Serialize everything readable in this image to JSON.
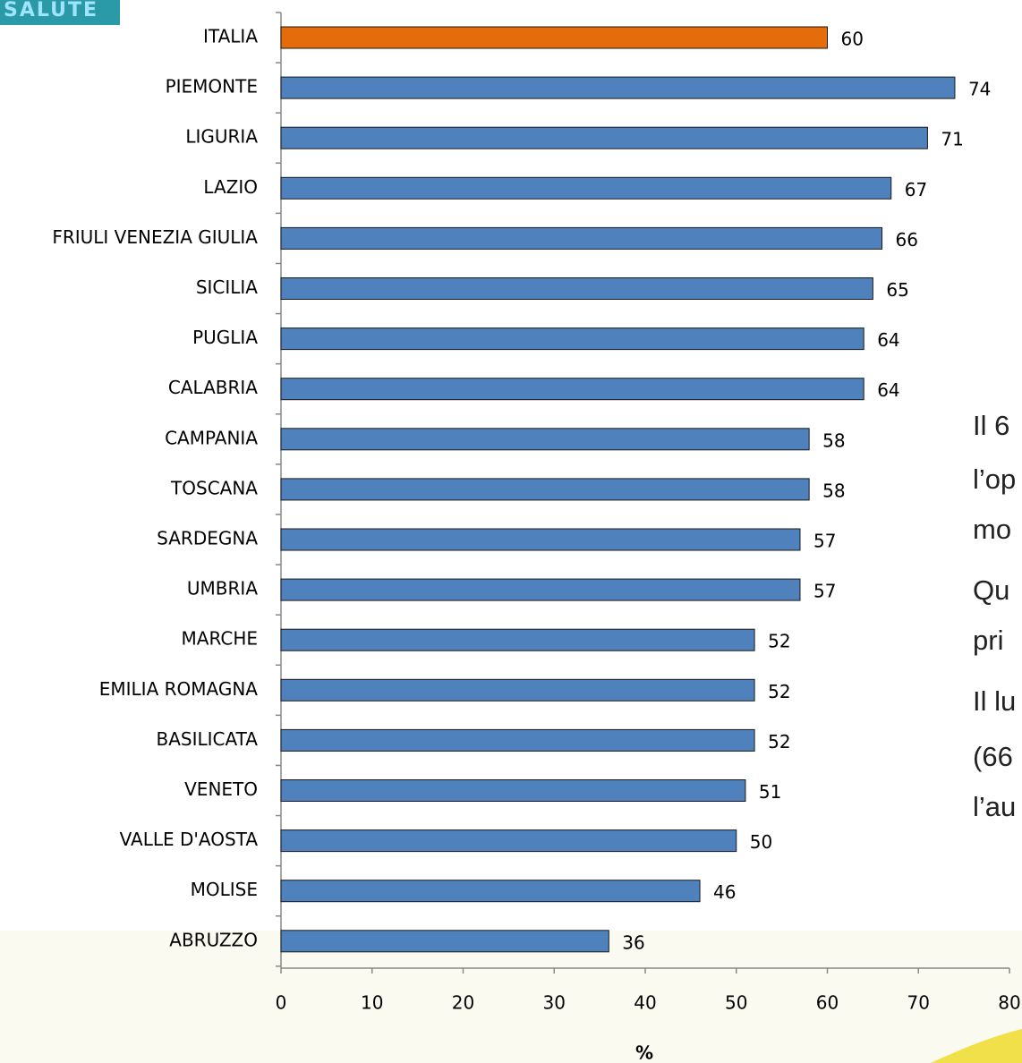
{
  "logo": "SALUTE",
  "side_text": [
    "Il 6",
    "l’op",
    "mo",
    "Qu",
    "pri",
    "Il lu",
    "(66",
    "l’au"
  ],
  "chart_data": {
    "type": "bar",
    "orientation": "horizontal",
    "categories": [
      "ITALIA",
      "PIEMONTE",
      "LIGURIA",
      "LAZIO",
      "FRIULI VENEZIA GIULIA",
      "SICILIA",
      "PUGLIA",
      "CALABRIA",
      "CAMPANIA",
      "TOSCANA",
      "SARDEGNA",
      "UMBRIA",
      "MARCHE",
      "EMILIA ROMAGNA",
      "BASILICATA",
      "VENETO",
      "VALLE D'AOSTA",
      "MOLISE",
      "ABRUZZO"
    ],
    "values": [
      60,
      74,
      71,
      67,
      66,
      65,
      64,
      64,
      58,
      58,
      57,
      57,
      52,
      52,
      52,
      51,
      50,
      46,
      36
    ],
    "colors": [
      "#e46c0a",
      "#4f81bd",
      "#4f81bd",
      "#4f81bd",
      "#4f81bd",
      "#4f81bd",
      "#4f81bd",
      "#4f81bd",
      "#4f81bd",
      "#4f81bd",
      "#4f81bd",
      "#4f81bd",
      "#4f81bd",
      "#4f81bd",
      "#4f81bd",
      "#4f81bd",
      "#4f81bd",
      "#4f81bd",
      "#4f81bd"
    ],
    "xlabel": "%",
    "xlim": [
      0,
      80
    ],
    "xticks": [
      0,
      10,
      20,
      30,
      40,
      50,
      60,
      70,
      80
    ]
  }
}
